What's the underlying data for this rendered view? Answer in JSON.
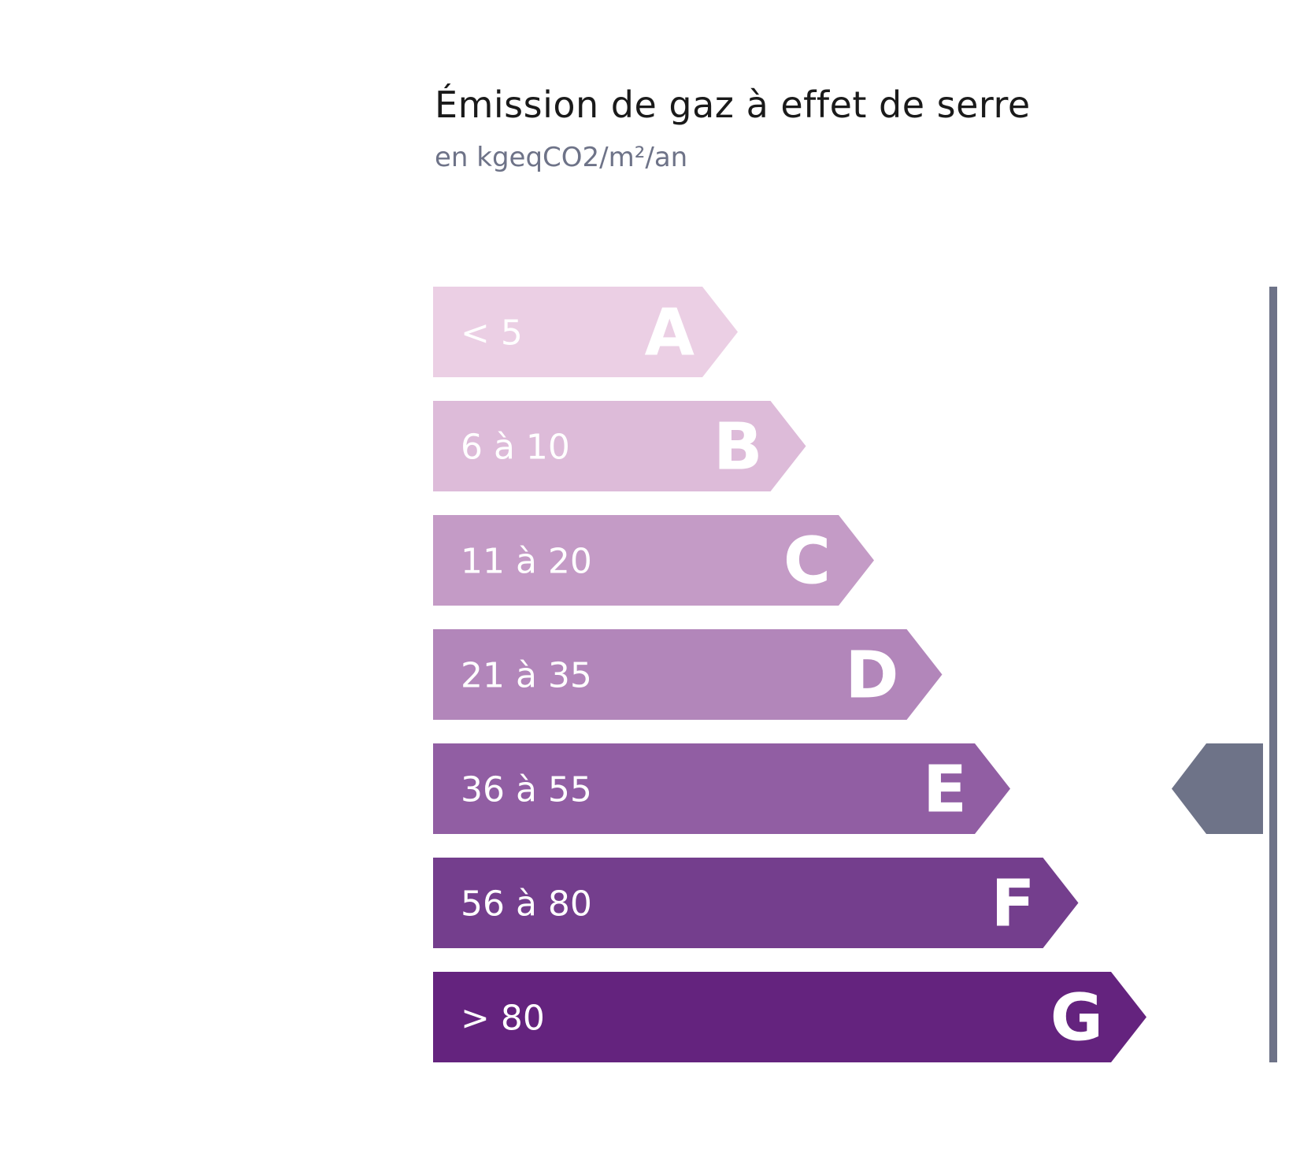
{
  "title": "Émission de gaz à effet de serre",
  "subtitle": "en kgeqCO2/m²/an",
  "chart_data": {
    "type": "bar",
    "classes": [
      {
        "letter": "A",
        "range": "< 5",
        "color": "#ebcfe4"
      },
      {
        "letter": "B",
        "range": "6 à 10",
        "color": "#ddbbd9"
      },
      {
        "letter": "C",
        "range": "11 à 20",
        "color": "#c49bc6"
      },
      {
        "letter": "D",
        "range": "21 à 35",
        "color": "#b286ba"
      },
      {
        "letter": "E",
        "range": "36 à 55",
        "color": "#915ea3"
      },
      {
        "letter": "F",
        "range": "56 à 80",
        "color": "#743e8d"
      },
      {
        "letter": "G",
        "range": "> 80",
        "color": "#64237e"
      }
    ],
    "selected_class": "E",
    "indicator_color": "#6e7388"
  }
}
